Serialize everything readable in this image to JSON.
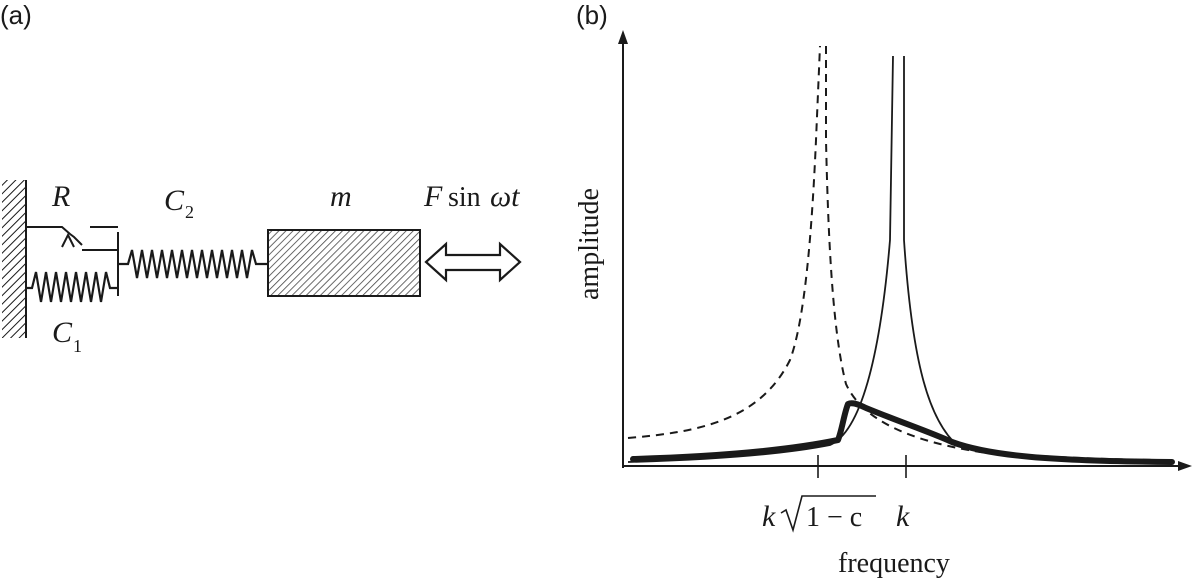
{
  "panel_a": {
    "label": "(a)",
    "labels": {
      "R": "R",
      "C2": "C",
      "C2_sub": "2",
      "m": "m",
      "force_F": "F",
      "force_sin": "sin",
      "force_wt": "ωt",
      "C1": "C",
      "C1_sub": "1"
    }
  },
  "panel_b": {
    "label": "(b)",
    "ylabel": "amplitude",
    "xlabel": "frequency",
    "ticks": {
      "left_k": "k",
      "left_expr": "1 − c",
      "right_k": "k"
    }
  },
  "colors": {
    "ink": "#1a1a1a",
    "hatch": "#444444"
  }
}
